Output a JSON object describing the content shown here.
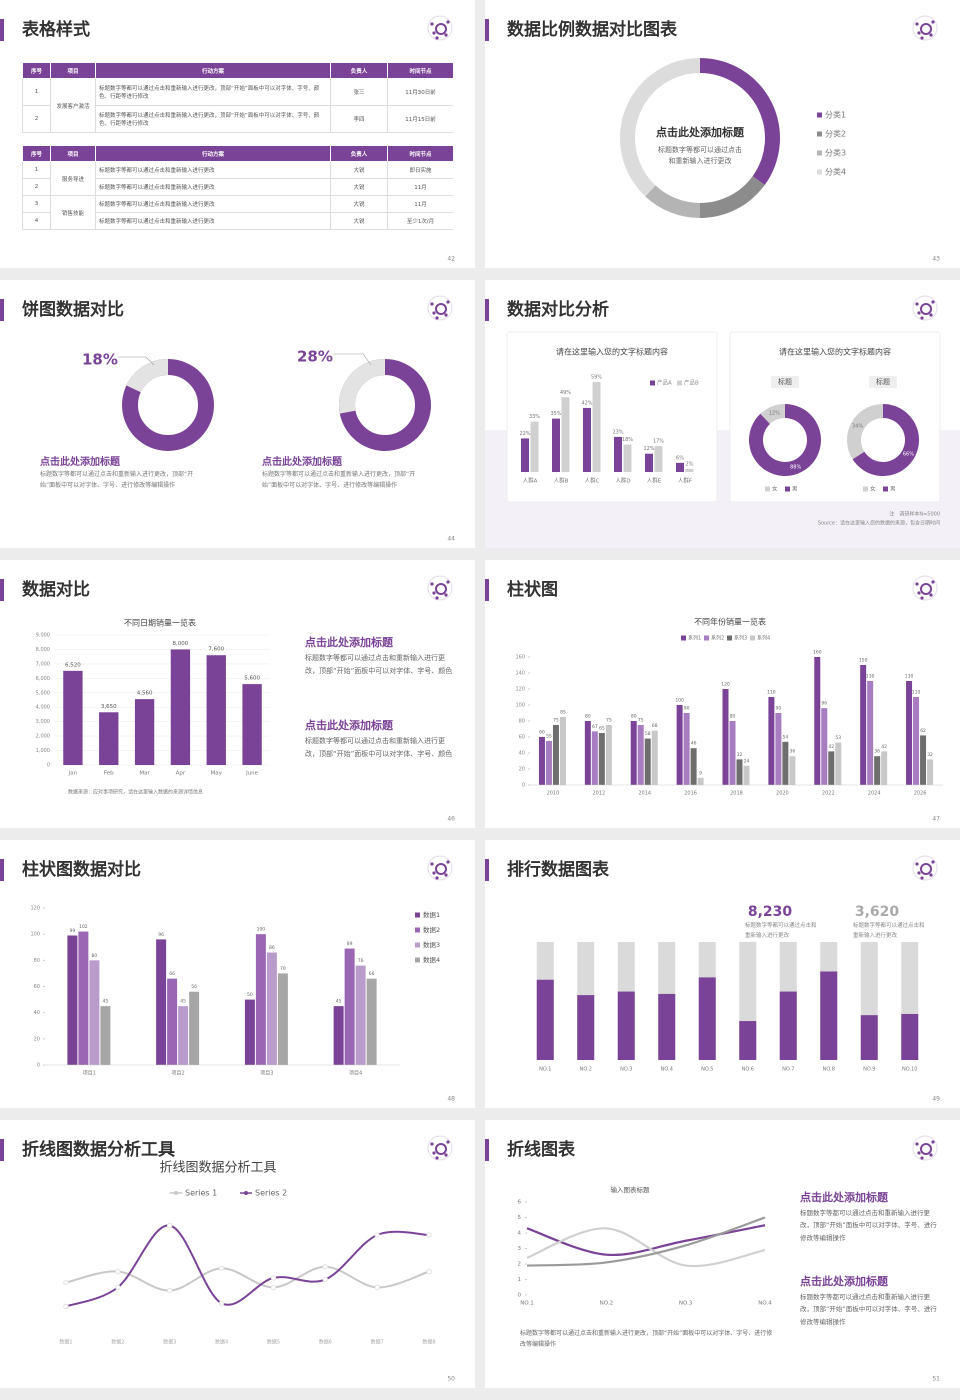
{
  "slides": [
    {
      "title": "表格样式",
      "page": "42",
      "tables": [
        {
          "header": [
            "序号",
            "项目",
            "行动方案",
            "负责人",
            "时间节点"
          ],
          "rows": [
            [
              "1",
              "发展客户激活",
              "标题数字等都可以通过点击和重新输入进行更改，顶部“开始”面板中可以对字体、字号、颜色、行距等进行修改",
              "张三",
              "11月30日前"
            ],
            [
              "2",
              null,
              "标题数字等都可以通过点击和重新输入进行更改，顶部“开始”面板中可以对字体、字号、颜色、行距等进行修改",
              "李四",
              "11月15日前"
            ]
          ]
        },
        {
          "header": [
            "序号",
            "项目",
            "行动方案",
            "负责人",
            "时间节点"
          ],
          "rows": [
            [
              "1",
              "服务导进",
              "标题数字等都可以通过点击和重新输入进行更改",
              "大锐",
              "即日实施"
            ],
            [
              "2",
              null,
              "标题数字等都可以通过点击和重新输入进行更改",
              "大锐",
              "11月"
            ],
            [
              "3",
              "销售技能",
              "标题数字等都可以通过点击和重新输入进行更改",
              "大锐",
              "11月"
            ],
            [
              "4",
              null,
              "标题数字等都可以通过点击和重新输入进行更改",
              "大锐",
              "至少1次/月"
            ]
          ]
        }
      ]
    },
    {
      "title": "数据比例数据对比图表",
      "page": "43",
      "chart_data": {
        "type": "donut",
        "categories": [
          "分类1",
          "分类2",
          "分类3",
          "分类4"
        ],
        "values": [
          35,
          15,
          12,
          38
        ],
        "colors": [
          "#7b4397",
          "#8c8c8c",
          "#b4b4b4",
          "#dcdcdc"
        ],
        "center_title": "点击此处添加标题",
        "center_text": "标题数字等都可以通过点击和重新输入进行更改"
      }
    },
    {
      "title": "饼图数据对比",
      "page": "44",
      "items": [
        {
          "value": 18,
          "value_label": "18%",
          "heading": "点击此处添加标题",
          "text": "标题数字等都可以通过点击和重新输入进行更改，顶部“开始”面板中可以对字体、字号、进行修改等编辑操作"
        },
        {
          "value": 28,
          "value_label": "28%",
          "heading": "点击此处添加标题",
          "text": "标题数字等都可以通过点击和重新输入进行更改，顶部“开始”面板中可以对字体、字号、进行修改等编辑操作"
        }
      ]
    },
    {
      "title": "数据对比分析",
      "page": "45",
      "bar_chart": {
        "type": "bar",
        "title": "请在这里输入您的文字标题内容",
        "categories": [
          "人群A",
          "人群B",
          "人群C",
          "人群D",
          "人群E",
          "人群F"
        ],
        "series": [
          {
            "name": "产品A",
            "color": "#7b4397",
            "values": [
              22,
              35,
              42,
              23,
              12,
              6
            ],
            "value_labels": [
              "22%",
              "35%",
              "42%",
              "23%",
              "12%",
              "6%"
            ]
          },
          {
            "name": "产品B",
            "color": "#d0d0d0",
            "values": [
              33,
              49,
              59,
              18,
              17,
              2
            ],
            "value_labels": [
              "33%",
              "49%",
              "59%",
              "18%",
              "17%",
              "2%"
            ]
          }
        ]
      },
      "donut_chart": {
        "type": "donut",
        "title": "请在这里输入您的文字标题内容",
        "categories": [
          "女",
          "男"
        ],
        "colors": [
          "#d0d0d0",
          "#7b4397"
        ],
        "donuts": [
          {
            "label": "标题",
            "values": [
              12,
              88
            ],
            "value_labels": [
              "12%",
              "88%"
            ]
          },
          {
            "label": "标题",
            "values": [
              34,
              66
            ],
            "value_labels": [
              "34%",
              "66%"
            ]
          }
        ]
      },
      "note": "注　调研样本N=5000",
      "source": "Source：请在这里输入您的数据的来源，包含日期时间"
    },
    {
      "title": "数据对比",
      "page": "46",
      "chart_data": {
        "type": "bar",
        "title": "不同日期销量一览表",
        "categories": [
          "Jan",
          "Feb",
          "Mar",
          "Apr",
          "May",
          "June"
        ],
        "values": [
          6520,
          3650,
          4560,
          8000,
          7600,
          5600
        ],
        "value_labels": [
          "6,520",
          "3,650",
          "4,560",
          "8,000",
          "7,600",
          "5,600"
        ],
        "color": "#7b4397",
        "ylim": [
          0,
          9000
        ],
        "yticks": [
          0,
          {
            "value": 1000,
            "label": "1,000"
          },
          {
            "value": 2000,
            "label": "2,000"
          },
          {
            "value": 3000,
            "label": "3,000"
          },
          {
            "value": 4000,
            "label": "4,000"
          },
          {
            "value": 5000,
            "label": "5,000"
          },
          {
            "value": 6000,
            "label": "6,000"
          },
          {
            "value": 7000,
            "label": "7,000"
          },
          {
            "value": 8000,
            "label": "8,000"
          },
          {
            "value": 9000,
            "label": "9,000"
          }
        ],
        "grid": true
      },
      "source": "数据来源：应对事项研究，请在这里输入数据的来源详情信息",
      "blocks": [
        {
          "heading": "点击此处添加标题",
          "text": "标题数字等都可以通过点击和重新输入进行更改，顶部“开始”面板中可以对字体、字号、颜色"
        },
        {
          "heading": "点击此处添加标题",
          "text": "标题数字等都可以通过点击和重新输入进行更改，顶部“开始”面板中可以对字体、字号、颜色"
        }
      ]
    },
    {
      "title": "柱状图",
      "page": "47",
      "chart_data": {
        "type": "bar",
        "title": "不同年份销量一览表",
        "categories": [
          "2010",
          "2012",
          "2014",
          "2016",
          "2018",
          "2020",
          "2022",
          "2024",
          "2026"
        ],
        "series": [
          {
            "name": "系列1",
            "color": "#7b4397",
            "values": [
              60,
              80,
              80,
              100,
              120,
              110,
              160,
              150,
              130
            ]
          },
          {
            "name": "系列2",
            "color": "#a77cc0",
            "values": [
              55,
              67,
              75,
              90,
              80,
              90,
              96,
              130,
              110
            ]
          },
          {
            "name": "系列3",
            "color": "#6e6e6e",
            "values": [
              75,
              65,
              58,
              46,
              32,
              54,
              42,
              36,
              62
            ]
          },
          {
            "name": "系列4",
            "color": "#c8c8c8",
            "values": [
              85,
              75,
              68,
              9,
              24,
              36,
              53,
              42,
              32
            ]
          }
        ],
        "ylim": [
          0,
          160
        ],
        "yticks": [
          0,
          20,
          40,
          60,
          80,
          100,
          120,
          140,
          160
        ]
      }
    },
    {
      "title": "柱状图数据对比",
      "page": "48",
      "chart_data": {
        "type": "bar",
        "categories": [
          "项目1",
          "项目2",
          "项目3",
          "项目4"
        ],
        "series": [
          {
            "name": "数据1",
            "color": "#7b4397",
            "values": [
              99,
              96,
              50,
              45
            ]
          },
          {
            "name": "数据2",
            "color": "#9b67b5",
            "values": [
              102,
              66,
              100,
              89
            ]
          },
          {
            "name": "数据3",
            "color": "#b99ccc",
            "values": [
              80,
              45,
              86,
              76
            ]
          },
          {
            "name": "数据4",
            "color": "#a6a6a6",
            "values": [
              45,
              56,
              70,
              66
            ]
          }
        ],
        "ylim": [
          0,
          120
        ],
        "yticks": [
          0,
          20,
          40,
          60,
          80,
          100,
          120
        ]
      }
    },
    {
      "title": "排行数据图表",
      "page": "49",
      "chart_data": {
        "type": "bar",
        "categories": [
          "NO.1",
          "NO.2",
          "NO.3",
          "NO.4",
          "NO.5",
          "NO.6",
          "NO.7",
          "NO.8",
          "NO.9",
          "NO.10"
        ],
        "values": [
          68,
          55,
          58,
          56,
          70,
          33,
          58,
          75,
          38,
          39
        ],
        "ylim": [
          0,
          100
        ],
        "color": "#7b4397",
        "track_color": "#dadada"
      },
      "highlights": [
        {
          "value": "8,230",
          "text": "标题数字等都可以通过点击和重新输入进行更改"
        },
        {
          "value": "3,620",
          "text": "标题数字等都可以通过点击和重新输入进行更改"
        }
      ]
    },
    {
      "title": "折线图数据分析工具",
      "page": "50",
      "chart_data": {
        "type": "line",
        "title": "折线图数据分析工具",
        "categories": [
          "数据1",
          "数据2",
          "数据3",
          "数据4",
          "数据5",
          "数据6",
          "数据7",
          "数据8"
        ],
        "series": [
          {
            "name": "Series 1",
            "color": "#c8c8c8",
            "values": [
              3.3,
              4,
              2.8,
              4.2,
              3,
              4.3,
              3,
              4
            ]
          },
          {
            "name": "Series 2",
            "color": "#7b4397",
            "values": [
              1.8,
              3,
              6.9,
              2,
              3.6,
              3.5,
              6.3,
              6.3
            ]
          }
        ],
        "ylim": [
          0,
          8
        ],
        "smooth": true
      }
    },
    {
      "title": "折线图表",
      "page": "51",
      "chart_data": {
        "type": "line",
        "title": "输入图表标题",
        "categories": [
          "NO.1",
          "NO.2",
          "NO.3",
          "NO.4"
        ],
        "series": [
          {
            "color": "#7b4397",
            "values": [
              4.3,
              2.6,
              3.5,
              4.5
            ]
          },
          {
            "color": "#d0d0d0",
            "values": [
              2.4,
              4.3,
              1.9,
              2.9
            ]
          },
          {
            "color": "#9a9a9a",
            "values": [
              1.9,
              2.1,
              3.2,
              5
            ]
          }
        ],
        "ylim": [
          0,
          6
        ],
        "yticks": [
          0,
          1,
          2,
          3,
          4,
          5,
          6
        ],
        "smooth": true
      },
      "blocks": [
        {
          "heading": "点击此处添加标题",
          "text": "标题数字等都可以通过点击和重新输入进行更改，顶部“开始”面板中可以对字体、字号、进行修改等编辑操作"
        },
        {
          "heading": "点击此处添加标题",
          "text": "标题数字等都可以通过点击和重新输入进行更改，顶部“开始”面板中可以对字体、字号、进行修改等编辑操作"
        }
      ],
      "footer_text": "标题数字等都可以通过点击和重新输入进行更改，顶部“开始”面板中可以对字体、字号、进行修改等编辑操作"
    }
  ]
}
